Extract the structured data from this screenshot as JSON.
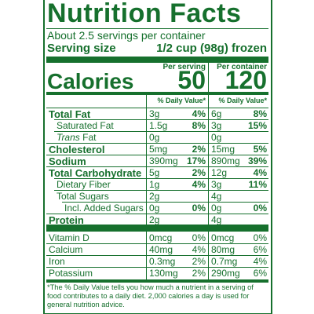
{
  "header": {
    "title": "Nutrition Facts",
    "servings": "About 2.5 servings per container",
    "serving_size_label": "Serving size",
    "serving_size": "1/2 cup (98g) frozen"
  },
  "calories": {
    "label": "Calories",
    "columns": [
      "Per serving",
      "Per container"
    ],
    "values": [
      50,
      120
    ]
  },
  "dv_header": [
    "% Daily Value*",
    "% Daily Value*"
  ],
  "nutrients": [
    {
      "name": "Total Fat",
      "bold": true,
      "indent": 0,
      "serving": "3g",
      "serving_dv": "4%",
      "container": "6g",
      "container_dv": "8%"
    },
    {
      "name": "Saturated Fat",
      "bold": false,
      "indent": 1,
      "serving": "1.5g",
      "serving_dv": "8%",
      "container": "3g",
      "container_dv": "15%"
    },
    {
      "name_italic": "Trans",
      "name": "Fat",
      "bold": false,
      "indent": 1,
      "serving": "0g",
      "container": "0g"
    },
    {
      "name": "Cholesterol",
      "bold": true,
      "indent": 0,
      "serving": "5mg",
      "serving_dv": "2%",
      "container": "15mg",
      "container_dv": "5%"
    },
    {
      "name": "Sodium",
      "bold": true,
      "indent": 0,
      "serving": "390mg",
      "serving_dv": "17%",
      "container": "890mg",
      "container_dv": "39%"
    },
    {
      "name": "Total Carbohydrate",
      "bold": true,
      "indent": 0,
      "serving": "5g",
      "serving_dv": "2%",
      "container": "12g",
      "container_dv": "4%"
    },
    {
      "name": "Dietary Fiber",
      "bold": false,
      "indent": 1,
      "serving": "1g",
      "serving_dv": "4%",
      "container": "3g",
      "container_dv": "11%"
    },
    {
      "name": "Total Sugars",
      "bold": false,
      "indent": 1,
      "serving": "2g",
      "container": "4g"
    },
    {
      "name": "Incl. Added Sugars",
      "bold": false,
      "indent": 2,
      "serving": "0g",
      "serving_dv": "0%",
      "container": "0g",
      "container_dv": "0%"
    },
    {
      "name": "Protein",
      "bold": true,
      "indent": 0,
      "serving": "2g",
      "container": "4g"
    }
  ],
  "vitamins": [
    {
      "name": "Vitamin D",
      "serving": "0mcg",
      "serving_dv": "0%",
      "container": "0mcg",
      "container_dv": "0%"
    },
    {
      "name": "Calcium",
      "serving": "40mg",
      "serving_dv": "4%",
      "container": "80mg",
      "container_dv": "6%"
    },
    {
      "name": "Iron",
      "serving": "0.3mg",
      "serving_dv": "2%",
      "container": "0.7mg",
      "container_dv": "4%"
    },
    {
      "name": "Potassium",
      "serving": "130mg",
      "serving_dv": "2%",
      "container": "290mg",
      "container_dv": "6%"
    }
  ],
  "footnote": "*The % Daily Value tells you how much a nutrient in a serving of food contributes to a daily diet. 2,000 calories a day is used for general nutrition advice."
}
